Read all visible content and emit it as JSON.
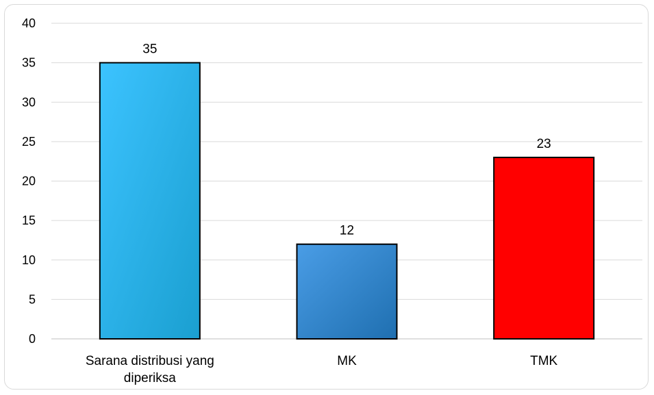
{
  "chart_data": {
    "type": "bar",
    "title": "",
    "xlabel": "",
    "ylabel": "",
    "ylim": [
      0,
      40
    ],
    "yticks": [
      0,
      5,
      10,
      15,
      20,
      25,
      30,
      35,
      40
    ],
    "grid": true,
    "legend": "none",
    "categories": [
      [
        "Sarana distribusi yang",
        "diperiksa"
      ],
      [
        "MK"
      ],
      [
        "TMK"
      ]
    ],
    "values": [
      35,
      12,
      23
    ],
    "data_labels": [
      "35",
      "12",
      "23"
    ],
    "colors": [
      {
        "light": "#3cc3ff",
        "dark": "#1a9fd0"
      },
      {
        "light": "#4a9de6",
        "dark": "#1f6fb0"
      },
      {
        "light": "#ff0000",
        "dark": "#ff0000"
      }
    ]
  }
}
